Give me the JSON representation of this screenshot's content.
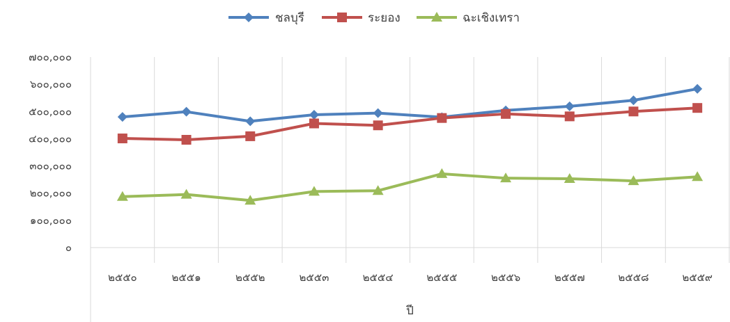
{
  "chart_data": {
    "type": "line",
    "xlabel": "ปี",
    "ylabel": "",
    "categories": [
      "๒๕๕๐",
      "๒๕๕๑",
      "๒๕๕๒",
      "๒๕๕๓",
      "๒๕๕๔",
      "๒๕๕๕",
      "๒๕๕๖",
      "๒๕๕๗",
      "๒๕๕๘",
      "๒๕๕๙"
    ],
    "ylim": [
      0,
      700000
    ],
    "y_ticks": [
      {
        "value": 0,
        "label": "๐"
      },
      {
        "value": 100000,
        "label": "๑๐๐,๐๐๐"
      },
      {
        "value": 200000,
        "label": "๒๐๐,๐๐๐"
      },
      {
        "value": 300000,
        "label": "๓๐๐,๐๐๐"
      },
      {
        "value": 400000,
        "label": "๔๐๐,๐๐๐"
      },
      {
        "value": 500000,
        "label": "๕๐๐,๐๐๐"
      },
      {
        "value": 600000,
        "label": "๖๐๐,๐๐๐"
      },
      {
        "value": 700000,
        "label": "๗๐๐,๐๐๐"
      }
    ],
    "grid": {
      "vertical": true,
      "horizontal": false
    },
    "legend_position": "top",
    "series": [
      {
        "name": "ชลบุรี",
        "color": "#4F81BD",
        "marker": "diamond",
        "values": [
          480000,
          499000,
          464000,
          488000,
          494000,
          479000,
          504000,
          519000,
          541000,
          583000
        ]
      },
      {
        "name": "ระยอง",
        "color": "#C0504D",
        "marker": "square",
        "values": [
          401000,
          396000,
          409000,
          456000,
          449000,
          476000,
          491000,
          482000,
          500000,
          513000
        ]
      },
      {
        "name": "ฉะเชิงเทรา",
        "color": "#9BBB59",
        "marker": "triangle",
        "values": [
          187000,
          195000,
          173000,
          206000,
          209000,
          271000,
          255000,
          253000,
          245000,
          260000
        ]
      }
    ]
  }
}
